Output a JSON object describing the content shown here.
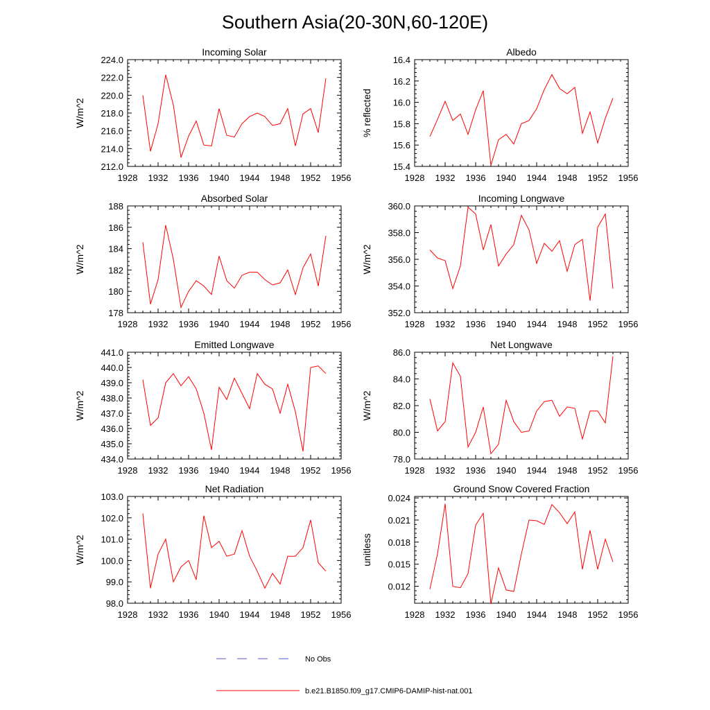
{
  "title": "Southern Asia(20-30N,60-120E)",
  "colors": {
    "series": "#ff0000",
    "obs": "#5555cc",
    "axis": "#000000"
  },
  "legend": {
    "obs_label": "No Obs",
    "series_label": "b.e21.B1850.f09_g17.CMIP6-DAMIP-hist-nat.001"
  },
  "chart_data": [
    {
      "type": "line",
      "title": "Incoming Solar",
      "ylabel": "W/m^2",
      "xlim": [
        1928,
        1956
      ],
      "xticks": [
        1928,
        1932,
        1936,
        1940,
        1944,
        1948,
        1952,
        1956
      ],
      "ylim": [
        212,
        224
      ],
      "yticks": [
        212,
        214,
        216,
        218,
        220,
        222,
        224
      ],
      "ytick_labels": [
        "212.0",
        "214.0",
        "216.0",
        "218.0",
        "220.0",
        "222.0",
        "224.0"
      ],
      "x": [
        1930,
        1931,
        1932,
        1933,
        1934,
        1935,
        1936,
        1937,
        1938,
        1939,
        1940,
        1941,
        1942,
        1943,
        1944,
        1945,
        1946,
        1947,
        1948,
        1949,
        1950,
        1951,
        1952,
        1953,
        1954
      ],
      "values": [
        220.0,
        213.7,
        216.8,
        222.3,
        218.9,
        213.0,
        215.4,
        217.1,
        214.4,
        214.3,
        218.5,
        215.5,
        215.3,
        216.8,
        217.6,
        218.0,
        217.6,
        216.6,
        216.8,
        218.5,
        214.3,
        217.9,
        218.5,
        215.8,
        221.9
      ]
    },
    {
      "type": "line",
      "title": "Albedo",
      "ylabel": "% reflected",
      "xlim": [
        1928,
        1956
      ],
      "xticks": [
        1928,
        1932,
        1936,
        1940,
        1944,
        1948,
        1952,
        1956
      ],
      "ylim": [
        15.4,
        16.4
      ],
      "yticks": [
        15.4,
        15.6,
        15.8,
        16.0,
        16.2,
        16.4
      ],
      "ytick_labels": [
        "15.4",
        "15.6",
        "15.8",
        "16.0",
        "16.2",
        "16.4"
      ],
      "x": [
        1930,
        1931,
        1932,
        1933,
        1934,
        1935,
        1936,
        1937,
        1938,
        1939,
        1940,
        1941,
        1942,
        1943,
        1944,
        1945,
        1946,
        1947,
        1948,
        1949,
        1950,
        1951,
        1952,
        1953,
        1954
      ],
      "values": [
        15.68,
        15.84,
        16.01,
        15.83,
        15.89,
        15.7,
        15.93,
        16.11,
        15.41,
        15.65,
        15.7,
        15.61,
        15.8,
        15.83,
        15.94,
        16.12,
        16.26,
        16.13,
        16.08,
        16.14,
        15.71,
        15.91,
        15.62,
        15.85,
        16.04
      ]
    },
    {
      "type": "line",
      "title": "Absorbed Solar",
      "ylabel": "W/m^2",
      "xlim": [
        1928,
        1956
      ],
      "xticks": [
        1928,
        1932,
        1936,
        1940,
        1944,
        1948,
        1952,
        1956
      ],
      "ylim": [
        178,
        188
      ],
      "yticks": [
        178,
        180,
        182,
        184,
        186,
        188
      ],
      "ytick_labels": [
        "178",
        "180",
        "182",
        "184",
        "186",
        "188"
      ],
      "x": [
        1930,
        1931,
        1932,
        1933,
        1934,
        1935,
        1936,
        1937,
        1938,
        1939,
        1940,
        1941,
        1942,
        1943,
        1944,
        1945,
        1946,
        1947,
        1948,
        1949,
        1950,
        1951,
        1952,
        1953,
        1954
      ],
      "values": [
        184.6,
        178.8,
        181.1,
        186.2,
        183.0,
        178.5,
        180.0,
        181.0,
        180.5,
        179.7,
        183.3,
        181.0,
        180.3,
        181.5,
        181.8,
        181.8,
        181.1,
        180.6,
        180.8,
        182.0,
        179.7,
        182.2,
        183.5,
        180.5,
        185.2
      ]
    },
    {
      "type": "line",
      "title": "Incoming Longwave",
      "ylabel": "W/m^2",
      "xlim": [
        1928,
        1956
      ],
      "xticks": [
        1928,
        1932,
        1936,
        1940,
        1944,
        1948,
        1952,
        1956
      ],
      "ylim": [
        352,
        360
      ],
      "yticks": [
        352,
        354,
        356,
        358,
        360
      ],
      "ytick_labels": [
        "352.0",
        "354.0",
        "356.0",
        "358.0",
        "360.0"
      ],
      "x": [
        1930,
        1931,
        1932,
        1933,
        1934,
        1935,
        1936,
        1937,
        1938,
        1939,
        1940,
        1941,
        1942,
        1943,
        1944,
        1945,
        1946,
        1947,
        1948,
        1949,
        1950,
        1951,
        1952,
        1953,
        1954
      ],
      "values": [
        356.7,
        356.1,
        355.9,
        353.8,
        355.5,
        359.9,
        359.4,
        356.7,
        358.6,
        355.5,
        356.4,
        357.1,
        359.3,
        358.2,
        355.7,
        357.2,
        356.6,
        357.4,
        355.1,
        357.1,
        357.5,
        352.9,
        358.4,
        359.4,
        353.8
      ]
    },
    {
      "type": "line",
      "title": "Emitted Longwave",
      "ylabel": "W/m^2",
      "xlim": [
        1928,
        1956
      ],
      "xticks": [
        1928,
        1932,
        1936,
        1940,
        1944,
        1948,
        1952,
        1956
      ],
      "ylim": [
        434,
        441
      ],
      "yticks": [
        434,
        435,
        436,
        437,
        438,
        439,
        440,
        441
      ],
      "ytick_labels": [
        "434.0",
        "435.0",
        "436.0",
        "437.0",
        "438.0",
        "439.0",
        "440.0",
        "441.0"
      ],
      "x": [
        1930,
        1931,
        1932,
        1933,
        1934,
        1935,
        1936,
        1937,
        1938,
        1939,
        1940,
        1941,
        1942,
        1943,
        1944,
        1945,
        1946,
        1947,
        1948,
        1949,
        1950,
        1951,
        1952,
        1953,
        1954
      ],
      "values": [
        439.2,
        436.2,
        436.7,
        439.0,
        439.6,
        438.8,
        439.4,
        438.6,
        437.0,
        434.6,
        438.7,
        437.9,
        439.3,
        438.3,
        437.3,
        439.6,
        438.9,
        438.6,
        437.0,
        438.9,
        437.1,
        434.5,
        440.0,
        440.1,
        439.6
      ]
    },
    {
      "type": "line",
      "title": "Net Longwave",
      "ylabel": "W/m^2",
      "xlim": [
        1928,
        1956
      ],
      "xticks": [
        1928,
        1932,
        1936,
        1940,
        1944,
        1948,
        1952,
        1956
      ],
      "ylim": [
        78,
        86
      ],
      "yticks": [
        78,
        80,
        82,
        84,
        86
      ],
      "ytick_labels": [
        "78.0",
        "80.0",
        "82.0",
        "84.0",
        "86.0"
      ],
      "x": [
        1930,
        1931,
        1932,
        1933,
        1934,
        1935,
        1936,
        1937,
        1938,
        1939,
        1940,
        1941,
        1942,
        1943,
        1944,
        1945,
        1946,
        1947,
        1948,
        1949,
        1950,
        1951,
        1952,
        1953,
        1954
      ],
      "values": [
        82.5,
        80.1,
        80.8,
        85.2,
        84.2,
        78.9,
        80.0,
        81.9,
        78.4,
        79.1,
        82.4,
        80.8,
        80.0,
        80.1,
        81.6,
        82.3,
        82.4,
        81.2,
        81.9,
        81.8,
        79.5,
        81.6,
        81.6,
        80.7,
        85.7
      ]
    },
    {
      "type": "line",
      "title": "Net Radiation",
      "ylabel": "W/m^2",
      "xlim": [
        1928,
        1956
      ],
      "xticks": [
        1928,
        1932,
        1936,
        1940,
        1944,
        1948,
        1952,
        1956
      ],
      "ylim": [
        98,
        103
      ],
      "yticks": [
        98,
        99,
        100,
        101,
        102,
        103
      ],
      "ytick_labels": [
        "98.0",
        "99.0",
        "100.0",
        "101.0",
        "102.0",
        "103.0"
      ],
      "x": [
        1930,
        1931,
        1932,
        1933,
        1934,
        1935,
        1936,
        1937,
        1938,
        1939,
        1940,
        1941,
        1942,
        1943,
        1944,
        1945,
        1946,
        1947,
        1948,
        1949,
        1950,
        1951,
        1952,
        1953,
        1954
      ],
      "values": [
        102.2,
        98.7,
        100.3,
        101.0,
        99.0,
        99.7,
        100.0,
        99.1,
        102.1,
        100.6,
        100.9,
        100.2,
        100.3,
        101.4,
        100.2,
        99.5,
        98.7,
        99.4,
        98.9,
        100.2,
        100.2,
        100.6,
        101.9,
        99.9,
        99.5
      ]
    },
    {
      "type": "line",
      "title": "Ground Snow Covered Fraction",
      "ylabel": "unitless",
      "xlim": [
        1928,
        1956
      ],
      "xticks": [
        1928,
        1932,
        1936,
        1940,
        1944,
        1948,
        1952,
        1956
      ],
      "ylim": [
        0.0097,
        0.0242
      ],
      "yticks": [
        0.012,
        0.015,
        0.018,
        0.021,
        0.024
      ],
      "ytick_labels": [
        "0.012",
        "0.015",
        "0.018",
        "0.021",
        "0.024"
      ],
      "x": [
        1930,
        1931,
        1932,
        1933,
        1934,
        1935,
        1936,
        1937,
        1938,
        1939,
        1940,
        1941,
        1942,
        1943,
        1944,
        1945,
        1946,
        1947,
        1948,
        1949,
        1950,
        1951,
        1952,
        1953,
        1954
      ],
      "values": [
        0.0116,
        0.0164,
        0.0232,
        0.012,
        0.0118,
        0.0137,
        0.0203,
        0.0219,
        0.0096,
        0.0145,
        0.0115,
        0.0113,
        0.0164,
        0.021,
        0.0209,
        0.0204,
        0.0231,
        0.022,
        0.0205,
        0.0221,
        0.0143,
        0.0196,
        0.0143,
        0.0184,
        0.0153
      ]
    }
  ]
}
